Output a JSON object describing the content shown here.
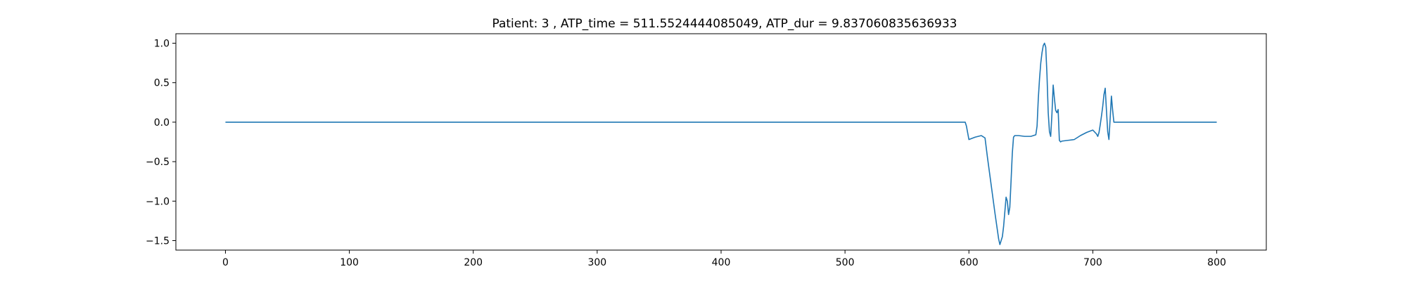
{
  "chart_data": {
    "type": "line",
    "title": "Patient: 3 , ATP_time = 511.5524444085049, ATP_dur = 9.837060835636933",
    "xlabel": "",
    "ylabel": "",
    "xlim": [
      -40,
      840
    ],
    "ylim": [
      -1.62,
      1.12
    ],
    "grid": false,
    "legend": "none",
    "line_color": "#1f77b4",
    "x_ticks": [
      0,
      100,
      200,
      300,
      400,
      500,
      600,
      700,
      800
    ],
    "x_tick_labels": [
      "0",
      "100",
      "200",
      "300",
      "400",
      "500",
      "600",
      "700",
      "800"
    ],
    "y_ticks": [
      1.0,
      0.5,
      0.0,
      -0.5,
      -1.0,
      -1.5
    ],
    "y_tick_labels": [
      "1.0",
      "0.5",
      "0.0",
      "−0.5",
      "−1.0",
      "−1.5"
    ],
    "series": [
      {
        "x": [
          0,
          100,
          200,
          300,
          400,
          500,
          597,
          598,
          600,
          605,
          610,
          613,
          615,
          618,
          621,
          624,
          625,
          627,
          628,
          630,
          631,
          632,
          633,
          634,
          635,
          636,
          637,
          638,
          640,
          645,
          650,
          654,
          655,
          656,
          657,
          658,
          659,
          660,
          661,
          662,
          663,
          664,
          665,
          666,
          667,
          668,
          669,
          670,
          671,
          672,
          673,
          674,
          675,
          680,
          685,
          690,
          695,
          700,
          703,
          704,
          705,
          706,
          707,
          708,
          709,
          710,
          711,
          712,
          713,
          714,
          715,
          716,
          717,
          718,
          719,
          720,
          722,
          740,
          770,
          800
        ],
        "y": [
          0,
          0,
          0,
          0,
          0,
          0,
          0,
          -0.05,
          -0.22,
          -0.19,
          -0.17,
          -0.2,
          -0.45,
          -0.8,
          -1.15,
          -1.48,
          -1.55,
          -1.45,
          -1.32,
          -0.95,
          -1.0,
          -1.17,
          -1.08,
          -0.75,
          -0.4,
          -0.19,
          -0.17,
          -0.17,
          -0.17,
          -0.18,
          -0.18,
          -0.16,
          -0.05,
          0.3,
          0.55,
          0.75,
          0.88,
          0.97,
          1.0,
          0.95,
          0.6,
          0.12,
          -0.12,
          -0.18,
          0.1,
          0.47,
          0.3,
          0.15,
          0.12,
          0.16,
          -0.23,
          -0.25,
          -0.24,
          -0.23,
          -0.22,
          -0.17,
          -0.13,
          -0.1,
          -0.15,
          -0.18,
          -0.13,
          -0.03,
          0.08,
          0.2,
          0.35,
          0.43,
          0.15,
          -0.12,
          -0.22,
          0.05,
          0.33,
          0.15,
          0.0,
          0.0,
          0.0,
          0.0,
          0.0,
          0.0,
          0.0,
          0.0
        ]
      }
    ]
  }
}
